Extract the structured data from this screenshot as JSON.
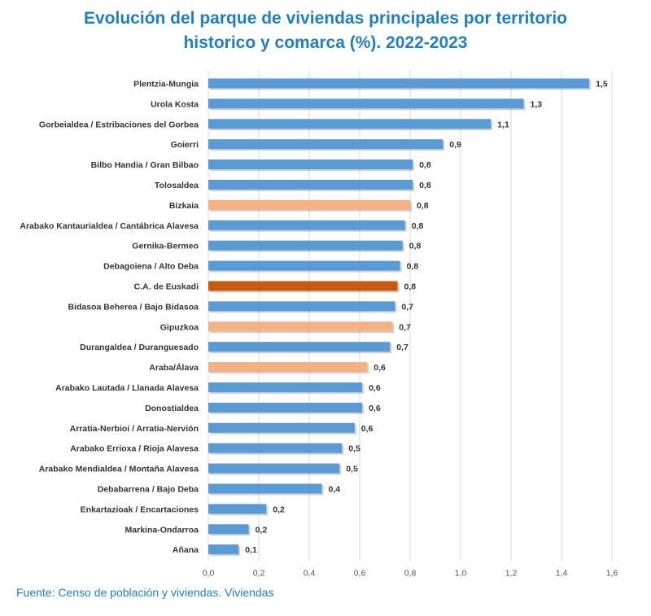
{
  "title_line1": "Evolución del parque de viviendas principales por territorio",
  "title_line2": "historico y comarca (%). 2022-2023",
  "source": "Fuente: Censo de población y viviendas. Viviendas",
  "colors": {
    "default": "#5b9bd5",
    "territory": "#f4b183",
    "total": "#c55a11",
    "title": "#1f7fc4"
  },
  "chart_data": {
    "type": "bar",
    "orientation": "horizontal",
    "xlim": [
      0,
      1.6
    ],
    "xticks": [
      "0,0",
      "0,2",
      "0,4",
      "0,6",
      "0,8",
      "1,0",
      "1,2",
      "1,4",
      "1,6"
    ],
    "grid": "vertical",
    "bars": [
      {
        "label": "Plentzia-Mungia",
        "value": 1.51,
        "display": "1,5",
        "kind": "default"
      },
      {
        "label": "Urola Kosta",
        "value": 1.25,
        "display": "1,3",
        "kind": "default"
      },
      {
        "label": "Gorbeialdea / Estribaciones del Gorbea",
        "value": 1.12,
        "display": "1,1",
        "kind": "default"
      },
      {
        "label": "Goierri",
        "value": 0.93,
        "display": "0,9",
        "kind": "default"
      },
      {
        "label": "Bilbo Handia / Gran Bilbao",
        "value": 0.81,
        "display": "0,8",
        "kind": "default"
      },
      {
        "label": "Tolosaldea",
        "value": 0.81,
        "display": "0,8",
        "kind": "default"
      },
      {
        "label": "Bizkaia",
        "value": 0.8,
        "display": "0,8",
        "kind": "territory"
      },
      {
        "label": "Arabako Kantaurialdea / Cantábrica Alavesa",
        "value": 0.78,
        "display": "0,8",
        "kind": "default"
      },
      {
        "label": "Gernika-Bermeo",
        "value": 0.77,
        "display": "0,8",
        "kind": "default"
      },
      {
        "label": "Debagoiena / Alto Deba",
        "value": 0.76,
        "display": "0,8",
        "kind": "default"
      },
      {
        "label": "C.A. de Euskadi",
        "value": 0.75,
        "display": "0,8",
        "kind": "total"
      },
      {
        "label": "Bidasoa Beherea / Bajo Bidasoa",
        "value": 0.74,
        "display": "0,7",
        "kind": "default"
      },
      {
        "label": "Gipuzkoa",
        "value": 0.73,
        "display": "0,7",
        "kind": "territory"
      },
      {
        "label": "Durangaldea / Duranguesado",
        "value": 0.72,
        "display": "0,7",
        "kind": "default"
      },
      {
        "label": "Araba/Álava",
        "value": 0.63,
        "display": "0,6",
        "kind": "territory"
      },
      {
        "label": "Arabako Lautada / Llanada Alavesa",
        "value": 0.61,
        "display": "0,6",
        "kind": "default"
      },
      {
        "label": "Donostialdea",
        "value": 0.61,
        "display": "0,6",
        "kind": "default"
      },
      {
        "label": "Arratia-Nerbioi / Arratia-Nervión",
        "value": 0.58,
        "display": "0,6",
        "kind": "default"
      },
      {
        "label": "Arabako Erriox a / Rioja Alavesa",
        "value": 0.53,
        "display": "0,5",
        "kind": "default"
      },
      {
        "label": "Arabako Mendialdea / Montaña Alavesa",
        "value": 0.52,
        "display": "0,5",
        "kind": "default"
      },
      {
        "label": "Debabarrena / Bajo Deba",
        "value": 0.45,
        "display": "0,4",
        "kind": "default"
      },
      {
        "label": "Enkartazioak / Encartaciones",
        "value": 0.23,
        "display": "0,2",
        "kind": "default"
      },
      {
        "label": "Markina-Ondarroa",
        "value": 0.16,
        "display": "0,2",
        "kind": "default"
      },
      {
        "label": "Añana",
        "value": 0.12,
        "display": "0,1",
        "kind": "default"
      }
    ]
  }
}
